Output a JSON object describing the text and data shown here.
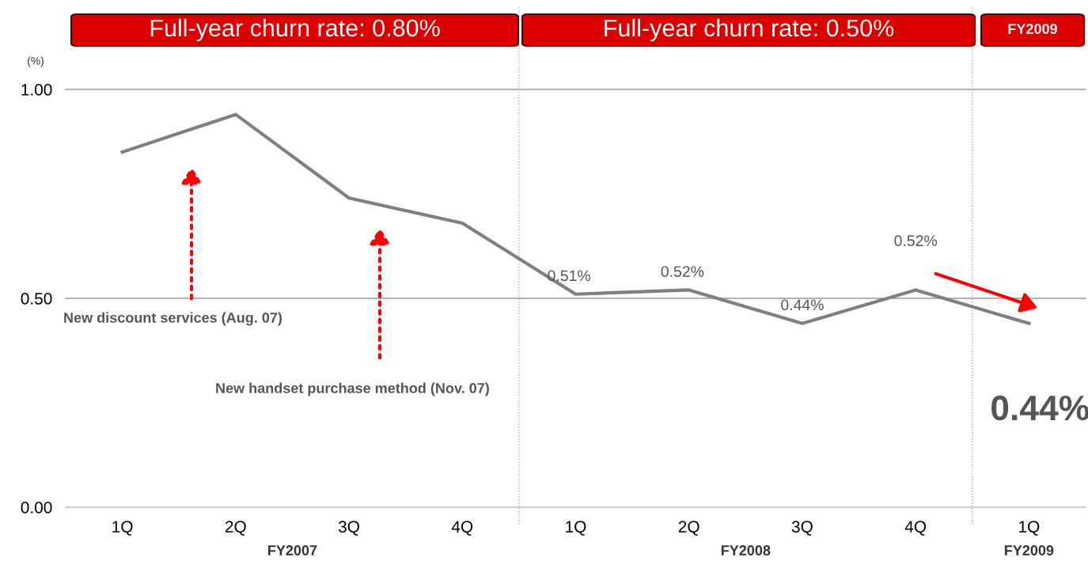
{
  "chart_data": {
    "type": "line",
    "ylabel": "(%)",
    "categories": [
      "1Q",
      "2Q",
      "3Q",
      "4Q",
      "1Q",
      "2Q",
      "3Q",
      "4Q",
      "1Q"
    ],
    "series": [
      {
        "color": "#808080",
        "values": [
          0.85,
          0.94,
          0.74,
          0.68,
          0.51,
          0.52,
          0.44,
          0.52,
          0.44
        ],
        "value_labels": [
          null,
          null,
          null,
          null,
          "0.51%",
          "0.52%",
          "0.44%",
          "0.52%",
          "0.44%"
        ]
      }
    ],
    "ylim": [
      0,
      1.0
    ],
    "yticks": [
      {
        "value": 0,
        "label": "0.00"
      },
      {
        "value": 0.5,
        "label": "0.50"
      },
      {
        "value": 1.0,
        "label": "1.00"
      }
    ],
    "marker": "none",
    "line_style": "solid",
    "legend": false,
    "ref_lines": [
      {
        "axis": "y",
        "value": 0.5,
        "color": "#999999",
        "line_style": "solid"
      },
      {
        "axis": "y",
        "value": 1.0,
        "color": "#999999",
        "line_style": "solid"
      }
    ],
    "annotations": [
      "Full-year churn rate: 0.80%",
      "Full-year churn rate: 0.50%",
      "FY2009",
      "FY2007",
      "FY2008",
      "FY2009",
      "New discount services (Aug. 07)",
      "New handset purchase method (Nov. 07)"
    ]
  }
}
